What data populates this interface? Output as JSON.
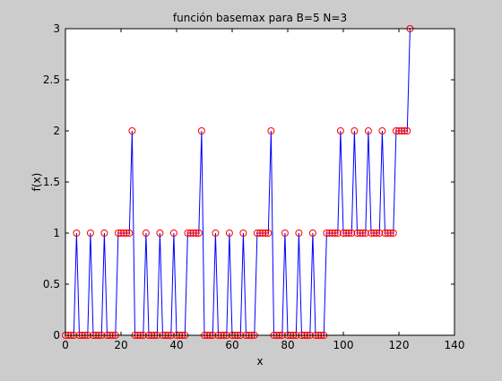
{
  "chart_data": {
    "type": "line",
    "title": "función basemax para B=5 N=3",
    "xlabel": "x",
    "ylabel": "f(x)",
    "xlim": [
      0,
      140
    ],
    "ylim": [
      0,
      3
    ],
    "xticks": [
      "0",
      "20",
      "40",
      "60",
      "80",
      "100",
      "120",
      "140"
    ],
    "yticks": [
      "0",
      "0.5",
      "1",
      "1.5",
      "2",
      "2.5",
      "3"
    ],
    "xtick_values": [
      0,
      20,
      40,
      60,
      80,
      100,
      120,
      140
    ],
    "ytick_values": [
      0,
      0.5,
      1,
      1.5,
      2,
      2.5,
      3
    ],
    "grid": false,
    "line_color": "#0000ff",
    "marker_color": "#ff0000",
    "marker": "circle",
    "x_start": 0,
    "values": [
      0,
      0,
      0,
      0,
      1,
      0,
      0,
      0,
      0,
      1,
      0,
      0,
      0,
      0,
      1,
      0,
      0,
      0,
      0,
      1,
      1,
      1,
      1,
      1,
      2,
      0,
      0,
      0,
      0,
      1,
      0,
      0,
      0,
      0,
      1,
      0,
      0,
      0,
      0,
      1,
      0,
      0,
      0,
      0,
      1,
      1,
      1,
      1,
      1,
      2,
      0,
      0,
      0,
      0,
      1,
      0,
      0,
      0,
      0,
      1,
      0,
      0,
      0,
      0,
      1,
      0,
      0,
      0,
      0,
      1,
      1,
      1,
      1,
      1,
      2,
      0,
      0,
      0,
      0,
      1,
      0,
      0,
      0,
      0,
      1,
      0,
      0,
      0,
      0,
      1,
      0,
      0,
      0,
      0,
      1,
      1,
      1,
      1,
      1,
      2,
      1,
      1,
      1,
      1,
      2,
      1,
      1,
      1,
      1,
      2,
      1,
      1,
      1,
      1,
      2,
      1,
      1,
      1,
      1,
      2,
      2,
      2,
      2,
      2,
      3
    ]
  }
}
